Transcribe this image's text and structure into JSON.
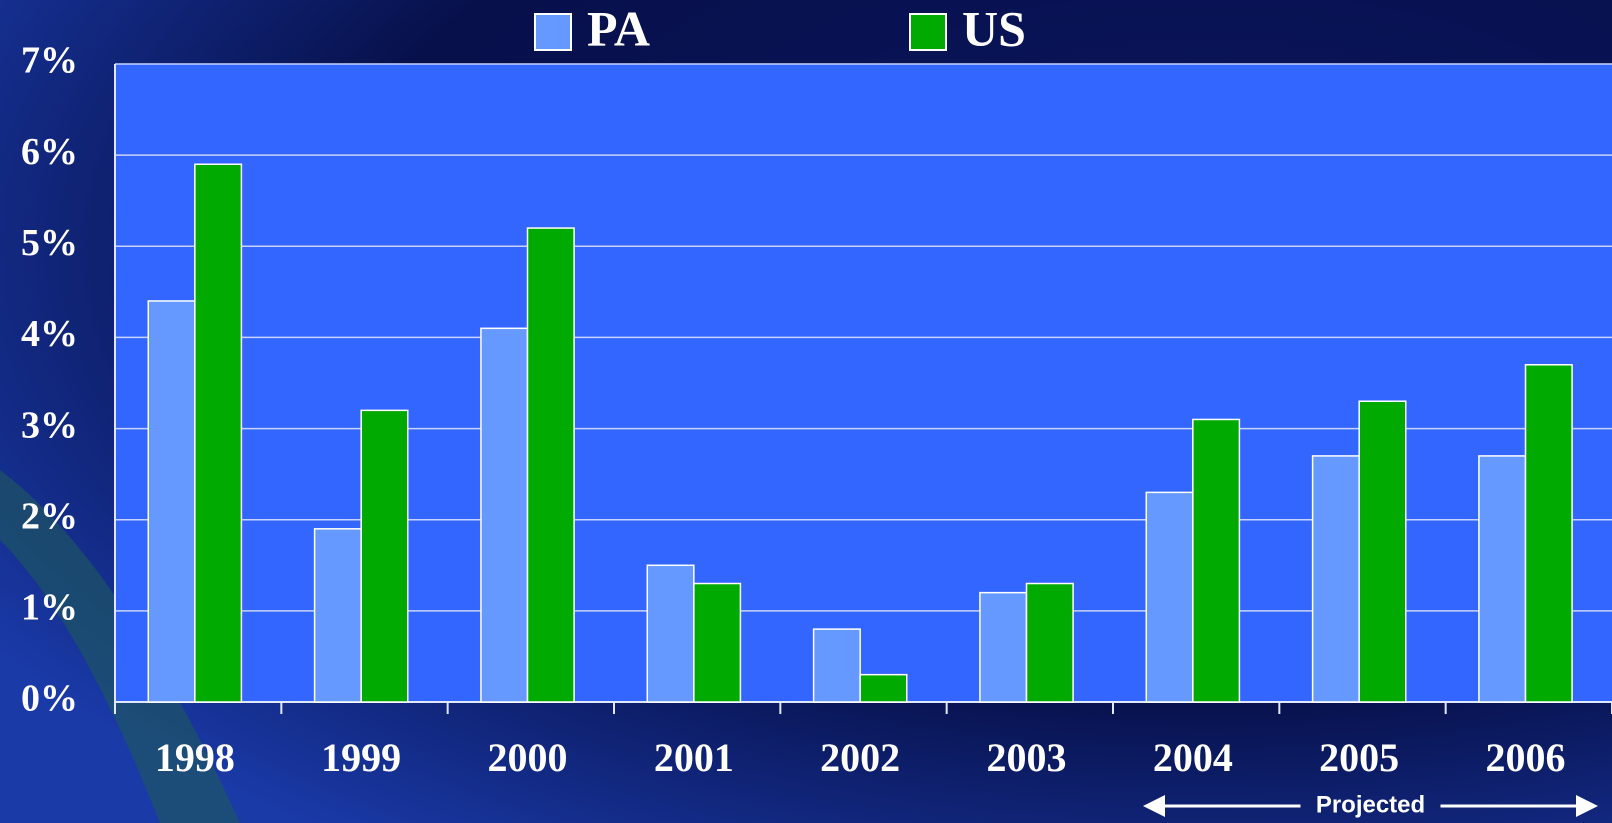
{
  "chart_data": {
    "type": "bar",
    "categories": [
      "1998",
      "1999",
      "2000",
      "2001",
      "2002",
      "2003",
      "2004",
      "2005",
      "2006"
    ],
    "series": [
      {
        "name": "PA",
        "color": "#6699ff",
        "values": [
          4.4,
          1.9,
          4.1,
          1.5,
          0.8,
          1.2,
          2.3,
          2.7,
          2.7
        ]
      },
      {
        "name": "US",
        "color": "#00aa00",
        "values": [
          5.9,
          3.2,
          5.2,
          1.3,
          0.3,
          1.3,
          3.1,
          3.3,
          3.7
        ]
      }
    ],
    "ylim": [
      0,
      7
    ],
    "yticks": [
      {
        "value": 0,
        "label": "0%"
      },
      {
        "value": 1,
        "label": "1%"
      },
      {
        "value": 2,
        "label": "2%"
      },
      {
        "value": 3,
        "label": "3%"
      },
      {
        "value": 4,
        "label": "4%"
      },
      {
        "value": 5,
        "label": "5%"
      },
      {
        "value": 6,
        "label": "6%"
      },
      {
        "value": 7,
        "label": "7%"
      }
    ],
    "grid": true,
    "plot_color": "#3366ff",
    "annotation": "Projected"
  }
}
